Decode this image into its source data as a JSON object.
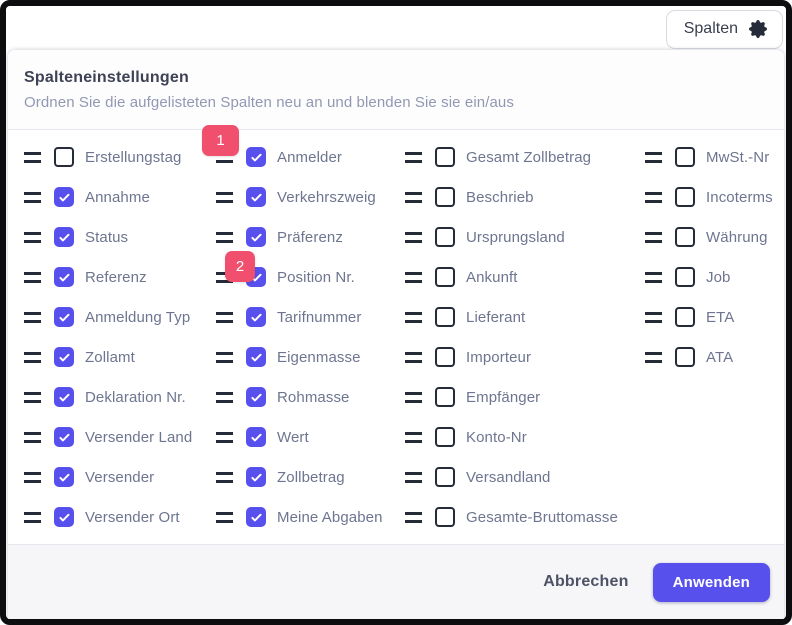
{
  "topbar": {
    "columns_button": "Spalten"
  },
  "dialog": {
    "title": "Spalteneinstellungen",
    "subtitle": "Ordnen Sie die aufgelisteten Spalten neu an und blenden Sie sie ein/aus",
    "cancel_label": "Abbrechen",
    "apply_label": "Anwenden",
    "columns": [
      {
        "items": [
          {
            "label": "Erstellungstag",
            "checked": false
          },
          {
            "label": "Annahme",
            "checked": true
          },
          {
            "label": "Status",
            "checked": true
          },
          {
            "label": "Referenz",
            "checked": true
          },
          {
            "label": "Anmeldung Typ",
            "checked": true
          },
          {
            "label": "Zollamt",
            "checked": true
          },
          {
            "label": "Deklaration Nr.",
            "checked": true
          },
          {
            "label": "Versender Land",
            "checked": true
          },
          {
            "label": "Versender",
            "checked": true
          },
          {
            "label": "Versender Ort",
            "checked": true
          }
        ]
      },
      {
        "items": [
          {
            "label": "Anmelder",
            "checked": true,
            "badge": "1"
          },
          {
            "label": "Verkehrszweig",
            "checked": true
          },
          {
            "label": "Präferenz",
            "checked": true
          },
          {
            "label": "Position Nr.",
            "checked": true,
            "badge": "2"
          },
          {
            "label": "Tarifnummer",
            "checked": true
          },
          {
            "label": "Eigenmasse",
            "checked": true
          },
          {
            "label": "Rohmasse",
            "checked": true
          },
          {
            "label": "Wert",
            "checked": true
          },
          {
            "label": "Zollbetrag",
            "checked": true
          },
          {
            "label": "Meine Abgaben",
            "checked": true
          }
        ]
      },
      {
        "items": [
          {
            "label": "Gesamt Zollbetrag",
            "checked": false
          },
          {
            "label": "Beschrieb",
            "checked": false
          },
          {
            "label": "Ursprungsland",
            "checked": false
          },
          {
            "label": "Ankunft",
            "checked": false
          },
          {
            "label": "Lieferant",
            "checked": false
          },
          {
            "label": "Importeur",
            "checked": false
          },
          {
            "label": "Empfänger",
            "checked": false
          },
          {
            "label": "Konto-Nr",
            "checked": false
          },
          {
            "label": "Versandland",
            "checked": false
          },
          {
            "label": "Gesamte-Bruttomasse",
            "checked": false
          }
        ]
      },
      {
        "items": [
          {
            "label": "MwSt.-Nr",
            "checked": false
          },
          {
            "label": "Incoterms",
            "checked": false
          },
          {
            "label": "Währung",
            "checked": false
          },
          {
            "label": "Job",
            "checked": false
          },
          {
            "label": "ETA",
            "checked": false
          },
          {
            "label": "ATA",
            "checked": false
          }
        ]
      }
    ]
  },
  "icons": {
    "columns_button": "gear-icon",
    "row_handle": "drag-handle-icon",
    "checkbox_mark": "check-icon"
  },
  "colors": {
    "accent": "#5850ec",
    "badge": "#f0506e",
    "checkbox_outline": "#252b38"
  }
}
